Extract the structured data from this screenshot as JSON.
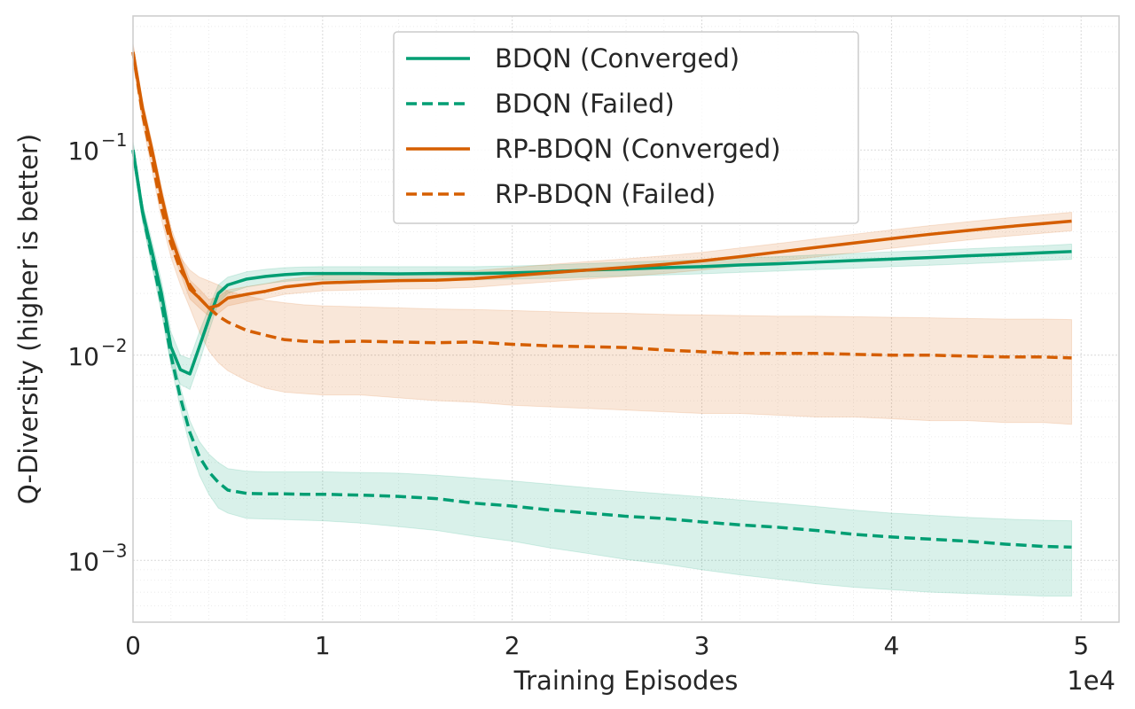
{
  "chart_data": {
    "type": "line",
    "xlabel": "Training Episodes",
    "ylabel": "Q-Diversity (higher is better)",
    "x_offset_label": "1e4",
    "x_ticks": [
      "0",
      "1",
      "2",
      "3",
      "4",
      "5"
    ],
    "x_tick_values": [
      0,
      10000,
      20000,
      30000,
      40000,
      50000
    ],
    "y_scale": "log",
    "y_ticks": [
      {
        "value": 0.001,
        "base": "10",
        "exp": "−3"
      },
      {
        "value": 0.01,
        "base": "10",
        "exp": "−2"
      },
      {
        "value": 0.1,
        "base": "10",
        "exp": "−1"
      }
    ],
    "xlim": [
      0,
      52000
    ],
    "ylim": [
      0.0005,
      0.45
    ],
    "grid": true,
    "legend_position": "top-center",
    "x": [
      0,
      500,
      1000,
      1500,
      2000,
      2500,
      3000,
      3500,
      4000,
      4500,
      5000,
      6000,
      7000,
      8000,
      9000,
      10000,
      12000,
      14000,
      16000,
      18000,
      20000,
      22000,
      24000,
      26000,
      28000,
      30000,
      32000,
      34000,
      36000,
      38000,
      40000,
      42000,
      44000,
      46000,
      48000,
      49500
    ],
    "series": [
      {
        "name": "BDQN (Converged)",
        "color": "#009e73",
        "style": "solid",
        "values": [
          0.1,
          0.05,
          0.032,
          0.02,
          0.011,
          0.0085,
          0.0081,
          0.011,
          0.015,
          0.02,
          0.022,
          0.0235,
          0.0242,
          0.0247,
          0.025,
          0.025,
          0.025,
          0.0249,
          0.025,
          0.025,
          0.0252,
          0.0255,
          0.026,
          0.0263,
          0.0267,
          0.027,
          0.0275,
          0.0279,
          0.0284,
          0.0289,
          0.0294,
          0.0299,
          0.0305,
          0.031,
          0.0316,
          0.032
        ],
        "band_low": [
          0.09,
          0.045,
          0.028,
          0.017,
          0.009,
          0.0072,
          0.0068,
          0.0092,
          0.013,
          0.018,
          0.02,
          0.0215,
          0.0223,
          0.0229,
          0.0232,
          0.0232,
          0.0232,
          0.0232,
          0.0232,
          0.0233,
          0.0235,
          0.0237,
          0.024,
          0.0243,
          0.0246,
          0.0249,
          0.0253,
          0.0257,
          0.0261,
          0.0265,
          0.027,
          0.0274,
          0.0279,
          0.0284,
          0.0289,
          0.0293
        ],
        "band_high": [
          0.11,
          0.055,
          0.036,
          0.023,
          0.013,
          0.01,
          0.0096,
          0.013,
          0.017,
          0.022,
          0.024,
          0.0255,
          0.0262,
          0.0267,
          0.0269,
          0.027,
          0.027,
          0.027,
          0.027,
          0.027,
          0.0272,
          0.0275,
          0.028,
          0.0284,
          0.0288,
          0.0292,
          0.0298,
          0.0302,
          0.0308,
          0.0313,
          0.0319,
          0.0324,
          0.033,
          0.0336,
          0.0342,
          0.0348
        ]
      },
      {
        "name": "BDQN (Failed)",
        "color": "#009e73",
        "style": "dashed",
        "values": [
          0.1,
          0.05,
          0.03,
          0.018,
          0.01,
          0.0062,
          0.0042,
          0.0032,
          0.0027,
          0.0024,
          0.0022,
          0.00212,
          0.00211,
          0.00211,
          0.0021,
          0.0021,
          0.00208,
          0.00205,
          0.002,
          0.0019,
          0.00184,
          0.00176,
          0.0017,
          0.00164,
          0.0016,
          0.00154,
          0.00149,
          0.00145,
          0.0014,
          0.00134,
          0.0013,
          0.00127,
          0.00124,
          0.0012,
          0.00117,
          0.00116
        ],
        "band_low": [
          0.09,
          0.045,
          0.027,
          0.016,
          0.009,
          0.0055,
          0.0036,
          0.0026,
          0.0021,
          0.0018,
          0.0017,
          0.0016,
          0.00159,
          0.00158,
          0.00157,
          0.00156,
          0.00152,
          0.00146,
          0.0014,
          0.00131,
          0.00124,
          0.00115,
          0.00108,
          0.00101,
          0.00096,
          0.0009,
          0.00085,
          0.00081,
          0.00077,
          0.00074,
          0.00072,
          0.0007,
          0.00069,
          0.00068,
          0.00067,
          0.00067
        ],
        "band_high": [
          0.11,
          0.055,
          0.033,
          0.02,
          0.011,
          0.007,
          0.0048,
          0.0038,
          0.0033,
          0.003,
          0.0028,
          0.00272,
          0.0027,
          0.0027,
          0.0027,
          0.0027,
          0.00268,
          0.00266,
          0.0026,
          0.00252,
          0.00244,
          0.00235,
          0.00226,
          0.00218,
          0.00211,
          0.00204,
          0.00197,
          0.0019,
          0.00183,
          0.00176,
          0.0017,
          0.00166,
          0.00162,
          0.00159,
          0.00157,
          0.00156
        ]
      },
      {
        "name": "RP-BDQN (Converged)",
        "color": "#d55e00",
        "style": "solid",
        "values": [
          0.3,
          0.16,
          0.1,
          0.06,
          0.038,
          0.028,
          0.021,
          0.019,
          0.017,
          0.0175,
          0.019,
          0.0198,
          0.0205,
          0.0215,
          0.022,
          0.0225,
          0.0228,
          0.0231,
          0.0232,
          0.0236,
          0.0244,
          0.0252,
          0.026,
          0.0268,
          0.0277,
          0.0288,
          0.0302,
          0.0318,
          0.0335,
          0.0352,
          0.037,
          0.0388,
          0.0405,
          0.0422,
          0.0438,
          0.045
        ],
        "band_low": [
          0.27,
          0.145,
          0.09,
          0.054,
          0.034,
          0.025,
          0.0188,
          0.017,
          0.0155,
          0.016,
          0.0174,
          0.0182,
          0.0189,
          0.0198,
          0.0202,
          0.0206,
          0.0208,
          0.021,
          0.0211,
          0.0214,
          0.0221,
          0.0228,
          0.0235,
          0.0242,
          0.025,
          0.026,
          0.0272,
          0.0286,
          0.0301,
          0.0316,
          0.0332,
          0.0348,
          0.0364,
          0.0379,
          0.0393,
          0.0404
        ],
        "band_high": [
          0.33,
          0.175,
          0.11,
          0.066,
          0.042,
          0.031,
          0.0232,
          0.021,
          0.0187,
          0.0192,
          0.0208,
          0.0216,
          0.0223,
          0.0233,
          0.0239,
          0.0245,
          0.0248,
          0.0252,
          0.0254,
          0.0258,
          0.0267,
          0.0277,
          0.0286,
          0.0295,
          0.0305,
          0.0317,
          0.0333,
          0.035,
          0.0369,
          0.0388,
          0.0408,
          0.0428,
          0.0447,
          0.0466,
          0.0483,
          0.0497
        ]
      },
      {
        "name": "RP-BDQN (Failed)",
        "color": "#d55e00",
        "style": "dashed",
        "values": [
          0.3,
          0.15,
          0.09,
          0.052,
          0.035,
          0.026,
          0.022,
          0.019,
          0.017,
          0.0155,
          0.0145,
          0.0132,
          0.0125,
          0.0119,
          0.0117,
          0.0116,
          0.0117,
          0.0116,
          0.0115,
          0.0116,
          0.0113,
          0.0111,
          0.011,
          0.0109,
          0.0106,
          0.0104,
          0.0102,
          0.0102,
          0.0102,
          0.0101,
          0.01,
          0.01,
          0.0099,
          0.0098,
          0.0098,
          0.0097
        ],
        "band_low": [
          0.27,
          0.135,
          0.08,
          0.046,
          0.03,
          0.022,
          0.017,
          0.013,
          0.0105,
          0.0092,
          0.0084,
          0.0075,
          0.0069,
          0.0066,
          0.0065,
          0.0064,
          0.0064,
          0.0062,
          0.006,
          0.0059,
          0.0057,
          0.0056,
          0.0055,
          0.0054,
          0.0053,
          0.0052,
          0.0052,
          0.0051,
          0.005,
          0.005,
          0.0049,
          0.0048,
          0.0048,
          0.0047,
          0.0047,
          0.0046
        ],
        "band_high": [
          0.33,
          0.165,
          0.1,
          0.058,
          0.04,
          0.03,
          0.026,
          0.024,
          0.023,
          0.022,
          0.0205,
          0.0195,
          0.0185,
          0.018,
          0.0176,
          0.0174,
          0.0172,
          0.017,
          0.0168,
          0.0167,
          0.0165,
          0.0163,
          0.0161,
          0.016,
          0.0158,
          0.0157,
          0.0156,
          0.0155,
          0.0155,
          0.0154,
          0.0153,
          0.0152,
          0.0151,
          0.015,
          0.015,
          0.0149
        ]
      }
    ]
  }
}
